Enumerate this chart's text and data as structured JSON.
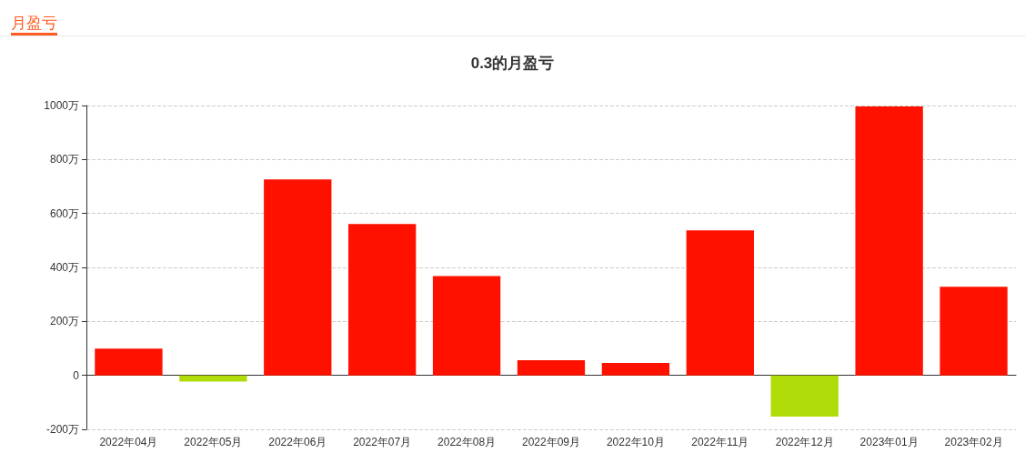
{
  "chart_data": {
    "type": "bar",
    "title": "0.3的月盈亏",
    "annotations": [
      "月盈亏"
    ],
    "categories": [
      "2022年04月",
      "2022年05月",
      "2022年06月",
      "2022年07月",
      "2022年08月",
      "2022年09月",
      "2022年10月",
      "2022年11月",
      "2022年12月",
      "2023年01月",
      "2023年02月"
    ],
    "values": [
      99,
      -23,
      726,
      561,
      368,
      56,
      46,
      537,
      -153,
      997,
      328
    ],
    "colors": [
      "#ff1100",
      "#b0dd0a",
      "#ff1100",
      "#ff1100",
      "#ff1100",
      "#ff1100",
      "#ff1100",
      "#ff1100",
      "#b0dd0a",
      "#ff1100",
      "#ff1100"
    ],
    "ylim": [
      -200,
      1000
    ],
    "yticks": [
      {
        "value": -200,
        "label": "-200万"
      },
      0,
      {
        "value": 200,
        "label": "200万"
      },
      {
        "value": 400,
        "label": "400万"
      },
      {
        "value": 600,
        "label": "600万"
      },
      {
        "value": 800,
        "label": "800万"
      },
      {
        "value": 1000,
        "label": "1000万"
      }
    ],
    "grid": "y"
  }
}
